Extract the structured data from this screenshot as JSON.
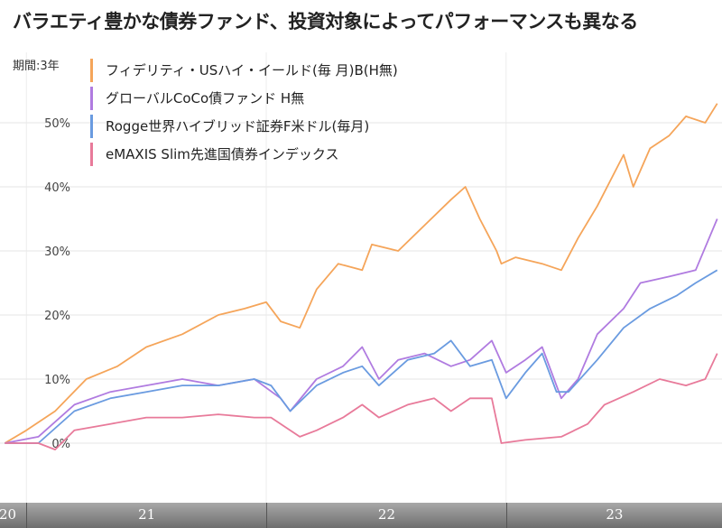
{
  "title": "バラエティ豊かな債券ファンド、投資対象によってパフォーマンスも異なる",
  "chart_data": {
    "type": "line",
    "title": "バラエティ豊かな債券ファンド、投資対象によってパフォーマンスも異なる",
    "period_label": "期間:3年",
    "xlabel": "",
    "ylabel": "",
    "x_ticks": [
      {
        "label": "20",
        "x": 2020.92
      },
      {
        "label": "21",
        "x": 2021.5
      },
      {
        "label": "22",
        "x": 2022.5
      },
      {
        "label": "23",
        "x": 2023.45
      }
    ],
    "y_ticks": [
      {
        "label": "0%",
        "v": 0
      },
      {
        "label": "10%",
        "v": 10
      },
      {
        "label": "20%",
        "v": 20
      },
      {
        "label": "30%",
        "v": 30
      },
      {
        "label": "40%",
        "v": 40
      },
      {
        "label": "50%",
        "v": 50
      }
    ],
    "xlim": [
      2020.89,
      2023.9
    ],
    "ylim": [
      -12,
      60
    ],
    "grid": true,
    "legend_position": "top-left",
    "series": [
      {
        "name": "フィデリティ・USハイ・イールド(毎 月)B(H無)",
        "color": "#f5a55a",
        "points": [
          [
            2020.91,
            0
          ],
          [
            2021.0,
            2
          ],
          [
            2021.12,
            5
          ],
          [
            2021.25,
            10
          ],
          [
            2021.38,
            12
          ],
          [
            2021.5,
            15
          ],
          [
            2021.65,
            17
          ],
          [
            2021.8,
            20
          ],
          [
            2021.91,
            21
          ],
          [
            2022.0,
            22
          ],
          [
            2022.06,
            19
          ],
          [
            2022.14,
            18
          ],
          [
            2022.21,
            24
          ],
          [
            2022.3,
            28
          ],
          [
            2022.4,
            27
          ],
          [
            2022.44,
            31
          ],
          [
            2022.55,
            30
          ],
          [
            2022.66,
            34
          ],
          [
            2022.77,
            38
          ],
          [
            2022.83,
            40
          ],
          [
            2022.89,
            35
          ],
          [
            2022.96,
            30
          ],
          [
            2022.98,
            28
          ],
          [
            2023.04,
            29
          ],
          [
            2023.15,
            28
          ],
          [
            2023.23,
            27
          ],
          [
            2023.3,
            32
          ],
          [
            2023.38,
            37
          ],
          [
            2023.49,
            45
          ],
          [
            2023.53,
            40
          ],
          [
            2023.6,
            46
          ],
          [
            2023.68,
            48
          ],
          [
            2023.75,
            51
          ],
          [
            2023.83,
            50
          ],
          [
            2023.88,
            53
          ]
        ]
      },
      {
        "name": "グローバルCoCo債ファンド H無",
        "color": "#b07be0",
        "points": [
          [
            2020.91,
            0
          ],
          [
            2021.05,
            1
          ],
          [
            2021.2,
            6
          ],
          [
            2021.35,
            8
          ],
          [
            2021.5,
            9
          ],
          [
            2021.65,
            10
          ],
          [
            2021.8,
            9
          ],
          [
            2021.95,
            10
          ],
          [
            2022.06,
            7
          ],
          [
            2022.1,
            5
          ],
          [
            2022.21,
            10
          ],
          [
            2022.32,
            12
          ],
          [
            2022.4,
            15
          ],
          [
            2022.47,
            10
          ],
          [
            2022.55,
            13
          ],
          [
            2022.66,
            14
          ],
          [
            2022.77,
            12
          ],
          [
            2022.85,
            13
          ],
          [
            2022.94,
            16
          ],
          [
            2023.0,
            11
          ],
          [
            2023.08,
            13
          ],
          [
            2023.15,
            15
          ],
          [
            2023.19,
            11
          ],
          [
            2023.23,
            7
          ],
          [
            2023.3,
            10
          ],
          [
            2023.38,
            17
          ],
          [
            2023.49,
            21
          ],
          [
            2023.56,
            25
          ],
          [
            2023.68,
            26
          ],
          [
            2023.79,
            27
          ],
          [
            2023.88,
            35
          ]
        ]
      },
      {
        "name": "Rogge世界ハイブリッド証券F米ドル(毎月)",
        "color": "#6a9be0",
        "points": [
          [
            2020.91,
            0
          ],
          [
            2021.05,
            0
          ],
          [
            2021.2,
            5
          ],
          [
            2021.35,
            7
          ],
          [
            2021.5,
            8
          ],
          [
            2021.65,
            9
          ],
          [
            2021.8,
            9
          ],
          [
            2021.95,
            10
          ],
          [
            2022.02,
            9
          ],
          [
            2022.1,
            5
          ],
          [
            2022.21,
            9
          ],
          [
            2022.32,
            11
          ],
          [
            2022.4,
            12
          ],
          [
            2022.47,
            9
          ],
          [
            2022.59,
            13
          ],
          [
            2022.7,
            14
          ],
          [
            2022.77,
            16
          ],
          [
            2022.85,
            12
          ],
          [
            2022.94,
            13
          ],
          [
            2023.0,
            7
          ],
          [
            2023.08,
            11
          ],
          [
            2023.15,
            14
          ],
          [
            2023.21,
            8
          ],
          [
            2023.26,
            8
          ],
          [
            2023.38,
            13
          ],
          [
            2023.49,
            18
          ],
          [
            2023.6,
            21
          ],
          [
            2023.71,
            23
          ],
          [
            2023.79,
            25
          ],
          [
            2023.88,
            27
          ]
        ]
      },
      {
        "name": "eMAXIS Slim先進国債券インデックス",
        "color": "#e87a9a",
        "points": [
          [
            2020.91,
            0
          ],
          [
            2021.05,
            0
          ],
          [
            2021.12,
            -1
          ],
          [
            2021.2,
            2
          ],
          [
            2021.35,
            3
          ],
          [
            2021.5,
            4
          ],
          [
            2021.65,
            4
          ],
          [
            2021.8,
            4.5
          ],
          [
            2021.95,
            4
          ],
          [
            2022.02,
            4
          ],
          [
            2022.14,
            1
          ],
          [
            2022.21,
            2
          ],
          [
            2022.32,
            4
          ],
          [
            2022.4,
            6
          ],
          [
            2022.47,
            4
          ],
          [
            2022.59,
            6
          ],
          [
            2022.7,
            7
          ],
          [
            2022.77,
            5
          ],
          [
            2022.85,
            7
          ],
          [
            2022.94,
            7
          ],
          [
            2022.98,
            0
          ],
          [
            2023.08,
            0.5
          ],
          [
            2023.23,
            1
          ],
          [
            2023.34,
            3
          ],
          [
            2023.41,
            6
          ],
          [
            2023.53,
            8
          ],
          [
            2023.64,
            10
          ],
          [
            2023.75,
            9
          ],
          [
            2023.83,
            10
          ],
          [
            2023.88,
            14
          ]
        ]
      }
    ]
  }
}
